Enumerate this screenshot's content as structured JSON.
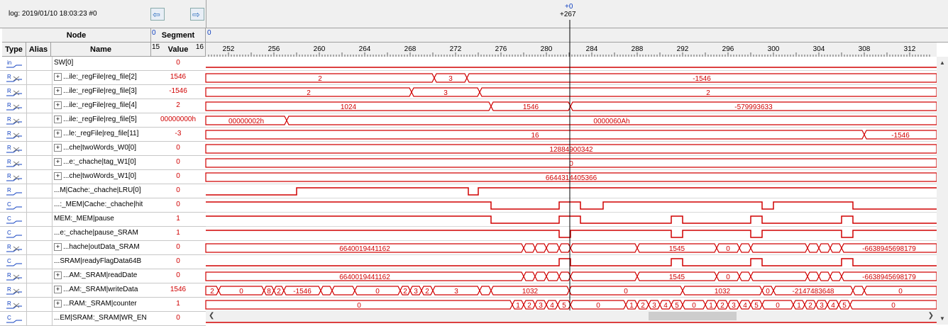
{
  "toolbar": {
    "log_label": "log: 2019/01/10 18:03:23  #0",
    "cursor_top": "+0",
    "cursor_bottom": "+267"
  },
  "headers": {
    "node": "Node",
    "type": "Type",
    "alias": "Alias",
    "name": "Name",
    "segment": "Segment",
    "segment_num": "0",
    "value": "Value",
    "value_left": "15",
    "value_right": "16",
    "wave_seg": "0"
  },
  "timeline": {
    "ticks": [
      "252",
      "256",
      "260",
      "264",
      "268",
      "272",
      "276",
      "280",
      "284",
      "288",
      "292",
      "296",
      "300",
      "304",
      "308",
      "312"
    ]
  },
  "colors": {
    "wave": "#d00000",
    "cursor": "#000000"
  },
  "rows": [
    {
      "type": "in",
      "name": "SW[0]",
      "expand": false,
      "value": "0"
    },
    {
      "type": "reg",
      "name": "...ile:_regFile|reg_file[2]",
      "expand": true,
      "value": "1546"
    },
    {
      "type": "reg",
      "name": "...ile:_regFile|reg_file[3]",
      "expand": true,
      "value": "-1546"
    },
    {
      "type": "reg",
      "name": "...ile:_regFile|reg_file[4]",
      "expand": true,
      "value": "2"
    },
    {
      "type": "reg",
      "name": "...ile:_regFile|reg_file[5]",
      "expand": true,
      "value": "00000000h"
    },
    {
      "type": "reg",
      "name": "...le:_regFile|reg_file[11]",
      "expand": true,
      "value": "-3"
    },
    {
      "type": "reg",
      "name": "...che|twoWords_W0[0]",
      "expand": true,
      "value": "0"
    },
    {
      "type": "reg",
      "name": "...e:_chache|tag_W1[0]",
      "expand": true,
      "value": "0"
    },
    {
      "type": "reg",
      "name": "...che|twoWords_W1[0]",
      "expand": true,
      "value": "0"
    },
    {
      "type": "r1",
      "name": "...M|Cache:_chache|LRU[0]",
      "expand": false,
      "value": "0"
    },
    {
      "type": "comb",
      "name": "...:_MEM|Cache:_chache|hit",
      "expand": false,
      "value": "0"
    },
    {
      "type": "comb",
      "name": "MEM:_MEM|pause",
      "expand": false,
      "value": "1"
    },
    {
      "type": "comb",
      "name": "...e:_chache|pause_SRAM",
      "expand": false,
      "value": "1"
    },
    {
      "type": "reg",
      "name": "...hache|outData_SRAM",
      "expand": true,
      "value": "0"
    },
    {
      "type": "comb",
      "name": "...SRAM|readyFlagData64B",
      "expand": false,
      "value": "0"
    },
    {
      "type": "reg",
      "name": "...AM:_SRAM|readDate",
      "expand": true,
      "value": "0"
    },
    {
      "type": "reg",
      "name": "...AM:_SRAM|writeData",
      "expand": true,
      "value": "1546"
    },
    {
      "type": "reg",
      "name": "...RAM:_SRAM|counter",
      "expand": true,
      "value": "1"
    },
    {
      "type": "comb",
      "name": "...EM|SRAM:_SRAM|WR_EN",
      "expand": false,
      "value": "0"
    }
  ],
  "waves": [
    {
      "kind": "bit",
      "initial": 0,
      "edges": []
    },
    {
      "kind": "bus",
      "segs": [
        [
          290,
          612,
          "2"
        ],
        [
          612,
          658,
          "3"
        ],
        [
          658,
          1320,
          "-1546"
        ]
      ]
    },
    {
      "kind": "bus",
      "segs": [
        [
          290,
          580,
          "2"
        ],
        [
          580,
          676,
          "3"
        ],
        [
          676,
          1320,
          "2"
        ]
      ]
    },
    {
      "kind": "bus",
      "segs": [
        [
          290,
          692,
          "1024"
        ],
        [
          692,
          804,
          "1546"
        ],
        [
          804,
          1320,
          "-579993633"
        ]
      ]
    },
    {
      "kind": "bus",
      "segs": [
        [
          290,
          404,
          "00000002h"
        ],
        [
          404,
          1320,
          "0000060Ah"
        ]
      ]
    },
    {
      "kind": "bus",
      "segs": [
        [
          290,
          1218,
          "16"
        ],
        [
          1218,
          1320,
          "-1546"
        ]
      ]
    },
    {
      "kind": "bus",
      "segs": [
        [
          290,
          1320,
          "12884900342"
        ]
      ]
    },
    {
      "kind": "bus",
      "segs": [
        [
          290,
          1320,
          "0"
        ]
      ]
    },
    {
      "kind": "bus",
      "segs": [
        [
          290,
          1320,
          "6644314405366"
        ]
      ]
    },
    {
      "kind": "bit",
      "initial": 0,
      "edges": [
        418,
        660,
        674
      ]
    },
    {
      "kind": "bit",
      "initial": 1,
      "edges": [
        692,
        788,
        818,
        850,
        1074,
        1090,
        1202
      ]
    },
    {
      "kind": "bit",
      "initial": 1,
      "edges": [
        692,
        788,
        818,
        946,
        962,
        1058,
        1074,
        1186,
        1202
      ]
    },
    {
      "kind": "bit",
      "initial": 1,
      "edges": [
        788,
        804,
        946,
        962,
        1058,
        1074,
        1186,
        1202
      ]
    },
    {
      "kind": "bus",
      "segs": [
        [
          290,
          738,
          "6640019441162"
        ],
        [
          738,
          754,
          ""
        ],
        [
          754,
          770,
          ""
        ],
        [
          770,
          788,
          ""
        ],
        [
          788,
          804,
          ""
        ],
        [
          804,
          898,
          ""
        ],
        [
          898,
          1010,
          "1545"
        ],
        [
          1010,
          1042,
          "0"
        ],
        [
          1042,
          1058,
          ""
        ],
        [
          1058,
          1138,
          ""
        ],
        [
          1138,
          1154,
          ""
        ],
        [
          1154,
          1170,
          ""
        ],
        [
          1170,
          1186,
          ""
        ],
        [
          1186,
          1320,
          "-6638945698179"
        ]
      ]
    },
    {
      "kind": "bit",
      "initial": 0,
      "edges": [
        788,
        804,
        946,
        962,
        1058,
        1074,
        1186,
        1202
      ]
    },
    {
      "kind": "bus",
      "segs": [
        [
          290,
          738,
          "6640019441162"
        ],
        [
          738,
          754,
          ""
        ],
        [
          754,
          770,
          ""
        ],
        [
          770,
          788,
          ""
        ],
        [
          788,
          804,
          ""
        ],
        [
          804,
          898,
          ""
        ],
        [
          898,
          1010,
          "1545"
        ],
        [
          1010,
          1042,
          "0"
        ],
        [
          1042,
          1058,
          ""
        ],
        [
          1058,
          1138,
          ""
        ],
        [
          1138,
          1154,
          ""
        ],
        [
          1154,
          1170,
          ""
        ],
        [
          1170,
          1186,
          ""
        ],
        [
          1186,
          1320,
          "-6638945698179"
        ]
      ]
    },
    {
      "kind": "bus",
      "segs": [
        [
          290,
          308,
          "2"
        ],
        [
          308,
          372,
          "0"
        ],
        [
          372,
          386,
          "8"
        ],
        [
          386,
          400,
          "2"
        ],
        [
          400,
          452,
          "-1546"
        ],
        [
          452,
          468,
          ""
        ],
        [
          468,
          500,
          ""
        ],
        [
          500,
          564,
          "0"
        ],
        [
          564,
          578,
          "2"
        ],
        [
          578,
          594,
          "3"
        ],
        [
          594,
          610,
          "2"
        ],
        [
          610,
          676,
          "3"
        ],
        [
          676,
          692,
          ""
        ],
        [
          692,
          802,
          "1032"
        ],
        [
          802,
          962,
          "0"
        ],
        [
          962,
          1074,
          "1032"
        ],
        [
          1074,
          1090,
          "0"
        ],
        [
          1090,
          1202,
          "-2147483648"
        ],
        [
          1202,
          1218,
          ""
        ],
        [
          1218,
          1320,
          "0"
        ]
      ]
    },
    {
      "kind": "bus",
      "segs": [
        [
          290,
          722,
          "0"
        ],
        [
          722,
          738,
          "1"
        ],
        [
          738,
          754,
          "2"
        ],
        [
          754,
          770,
          "3"
        ],
        [
          770,
          786,
          "4"
        ],
        [
          786,
          804,
          "5"
        ],
        [
          804,
          882,
          "0"
        ],
        [
          882,
          898,
          "1"
        ],
        [
          898,
          914,
          "2"
        ],
        [
          914,
          930,
          "3"
        ],
        [
          930,
          946,
          "4"
        ],
        [
          946,
          962,
          "5"
        ],
        [
          962,
          994,
          "0"
        ],
        [
          994,
          1010,
          "1"
        ],
        [
          1010,
          1026,
          "2"
        ],
        [
          1026,
          1042,
          "3"
        ],
        [
          1042,
          1058,
          "4"
        ],
        [
          1058,
          1074,
          "5"
        ],
        [
          1074,
          1118,
          "0"
        ],
        [
          1118,
          1134,
          "1"
        ],
        [
          1134,
          1150,
          "2"
        ],
        [
          1150,
          1166,
          "3"
        ],
        [
          1166,
          1182,
          "4"
        ],
        [
          1182,
          1198,
          "5"
        ],
        [
          1198,
          1320,
          "0"
        ]
      ]
    },
    {
      "kind": "bit",
      "initial": 0,
      "edges": []
    }
  ]
}
